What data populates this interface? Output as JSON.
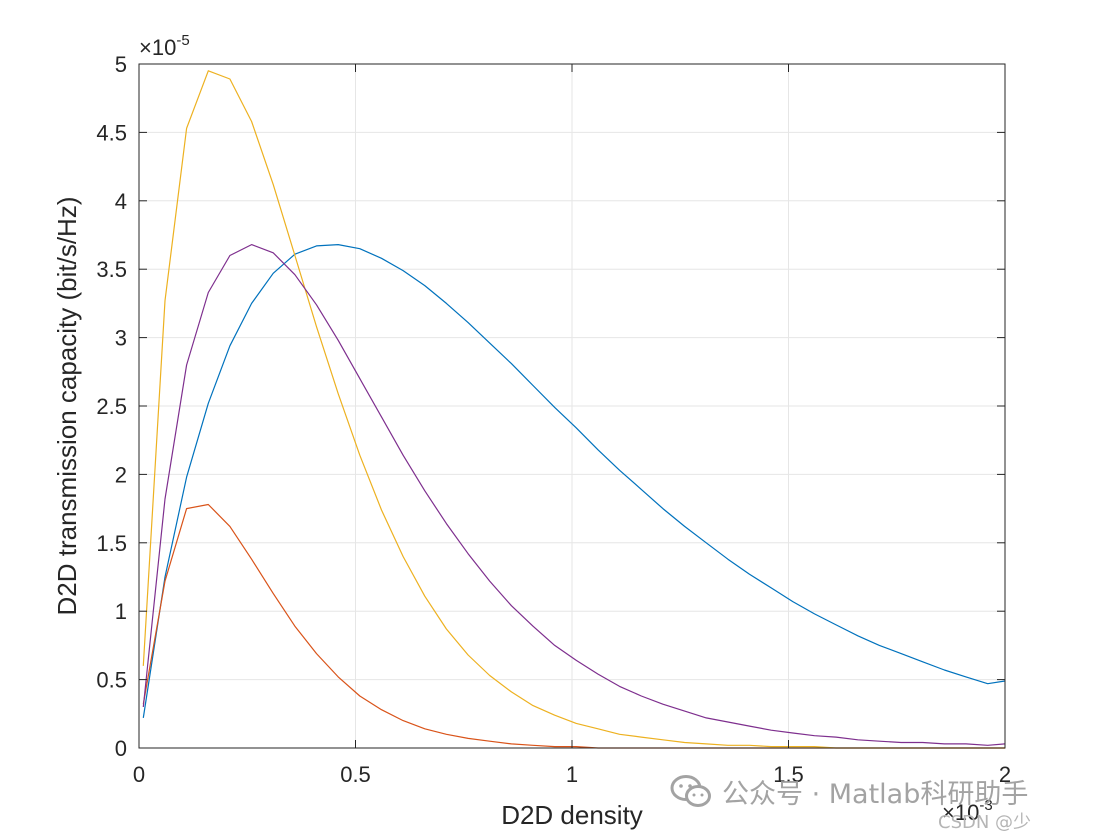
{
  "chart_data": {
    "type": "line",
    "title": "",
    "xlabel": "D2D density",
    "ylabel": "D2D transmission capacity (bit/s/Hz)",
    "x_exponent_label": "×10",
    "x_exponent_power": "-3",
    "y_exponent_label": "×10",
    "y_exponent_power": "-5",
    "xlim": [
      0,
      0.002
    ],
    "ylim": [
      0,
      5e-05
    ],
    "x_ticks": [
      0,
      0.0005,
      0.001,
      0.0015,
      0.002
    ],
    "x_tick_labels": [
      "0",
      "0.5",
      "1",
      "1.5",
      "2"
    ],
    "y_ticks": [
      0,
      5e-06,
      1e-05,
      1.5e-05,
      2e-05,
      2.5e-05,
      3e-05,
      3.5e-05,
      4e-05,
      4.5e-05,
      5e-05
    ],
    "y_tick_labels": [
      "0",
      "0.5",
      "1",
      "1.5",
      "2",
      "2.5",
      "3",
      "3.5",
      "4",
      "4.5",
      "5"
    ],
    "grid": true,
    "x": [
      1e-05,
      6e-05,
      0.00011,
      0.00016,
      0.00021,
      0.00026,
      0.00031,
      0.00036,
      0.00041,
      0.00046,
      0.00051,
      0.00056,
      0.00061,
      0.00066,
      0.00071,
      0.00076,
      0.00081,
      0.00086,
      0.00091,
      0.00096,
      0.00101,
      0.00106,
      0.00111,
      0.00116,
      0.00121,
      0.00126,
      0.00131,
      0.00136,
      0.00141,
      0.00146,
      0.00151,
      0.00156,
      0.00161,
      0.00166,
      0.00171,
      0.00176,
      0.00181,
      0.00186,
      0.00191,
      0.00196,
      0.002
    ],
    "series": [
      {
        "color": "#0072BD",
        "values": [
          2.2e-06,
          1.25e-05,
          1.98e-05,
          2.52e-05,
          2.94e-05,
          3.25e-05,
          3.47e-05,
          3.61e-05,
          3.67e-05,
          3.68e-05,
          3.65e-05,
          3.58e-05,
          3.49e-05,
          3.38e-05,
          3.25e-05,
          3.11e-05,
          2.96e-05,
          2.81e-05,
          2.65e-05,
          2.49e-05,
          2.34e-05,
          2.18e-05,
          2.03e-05,
          1.89e-05,
          1.75e-05,
          1.62e-05,
          1.5e-05,
          1.38e-05,
          1.27e-05,
          1.17e-05,
          1.07e-05,
          9.8e-06,
          9e-06,
          8.2e-06,
          7.5e-06,
          6.9e-06,
          6.3e-06,
          5.7e-06,
          5.2e-06,
          4.7e-06,
          4.9e-06
        ]
      },
      {
        "color": "#D95319",
        "values": [
          3.2e-06,
          1.22e-05,
          1.75e-05,
          1.78e-05,
          1.62e-05,
          1.38e-05,
          1.13e-05,
          8.9e-06,
          6.9e-06,
          5.2e-06,
          3.8e-06,
          2.8e-06,
          2e-06,
          1.4e-06,
          1e-06,
          7e-07,
          5e-07,
          3e-07,
          2e-07,
          1e-07,
          1e-07,
          0,
          0,
          0,
          0,
          0,
          0,
          0,
          0,
          0,
          0,
          0,
          0,
          0,
          0,
          0,
          0,
          0,
          0,
          0,
          0
        ]
      },
      {
        "color": "#EDB120",
        "values": [
          6e-06,
          3.27e-05,
          4.53e-05,
          4.95e-05,
          4.89e-05,
          4.58e-05,
          4.12e-05,
          3.6e-05,
          3.08e-05,
          2.59e-05,
          2.14e-05,
          1.74e-05,
          1.4e-05,
          1.11e-05,
          8.7e-06,
          6.8e-06,
          5.3e-06,
          4.1e-06,
          3.1e-06,
          2.4e-06,
          1.8e-06,
          1.4e-06,
          1e-06,
          8e-07,
          6e-07,
          4e-07,
          3e-07,
          2e-07,
          2e-07,
          1e-07,
          1e-07,
          1e-07,
          0,
          0,
          0,
          0,
          0,
          0,
          0,
          0,
          0
        ]
      },
      {
        "color": "#7E2F8E",
        "values": [
          3e-06,
          1.82e-05,
          2.8e-05,
          3.33e-05,
          3.6e-05,
          3.68e-05,
          3.62e-05,
          3.46e-05,
          3.24e-05,
          2.98e-05,
          2.7e-05,
          2.42e-05,
          2.14e-05,
          1.88e-05,
          1.64e-05,
          1.42e-05,
          1.22e-05,
          1.04e-05,
          8.9e-06,
          7.5e-06,
          6.4e-06,
          5.4e-06,
          4.5e-06,
          3.8e-06,
          3.2e-06,
          2.7e-06,
          2.2e-06,
          1.9e-06,
          1.6e-06,
          1.3e-06,
          1.1e-06,
          9e-07,
          8e-07,
          6e-07,
          5e-07,
          4e-07,
          4e-07,
          3e-07,
          3e-07,
          2e-07,
          3e-07
        ]
      }
    ]
  },
  "watermark": {
    "text": "公众号 · Matlab科研助手",
    "secondary_text": "CSDN @少",
    "icon": "wechat-icon"
  }
}
